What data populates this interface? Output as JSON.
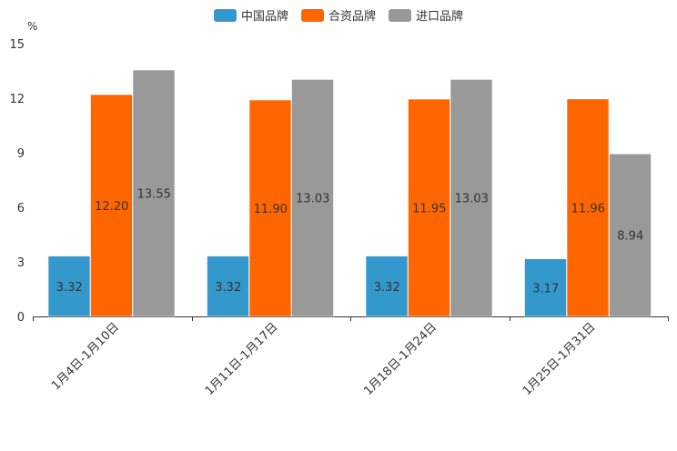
{
  "chart_data": {
    "type": "bar",
    "ylabel": "%",
    "ylim": [
      0,
      15
    ],
    "yticks": [
      0,
      3,
      6,
      9,
      12,
      15
    ],
    "categories": [
      "1月4日-1月10日",
      "1月11日-1月17日",
      "1月18日-1月24日",
      "1月25日-1月31日"
    ],
    "series": [
      {
        "name": "中国品牌",
        "color": "#3399cc",
        "values": [
          3.32,
          3.32,
          3.32,
          3.17
        ],
        "labels": [
          "3.32",
          "3.32",
          "3.32",
          "3.17"
        ]
      },
      {
        "name": "合资品牌",
        "color": "#ff6600",
        "values": [
          12.2,
          11.9,
          11.95,
          11.96
        ],
        "labels": [
          "12.20",
          "11.90",
          "11.95",
          "11.96"
        ]
      },
      {
        "name": "进口品牌",
        "color": "#999999",
        "values": [
          13.55,
          13.03,
          13.03,
          8.94
        ],
        "labels": [
          "13.55",
          "13.03",
          "13.03",
          "8.94"
        ]
      }
    ],
    "legend_position": "top-center"
  }
}
